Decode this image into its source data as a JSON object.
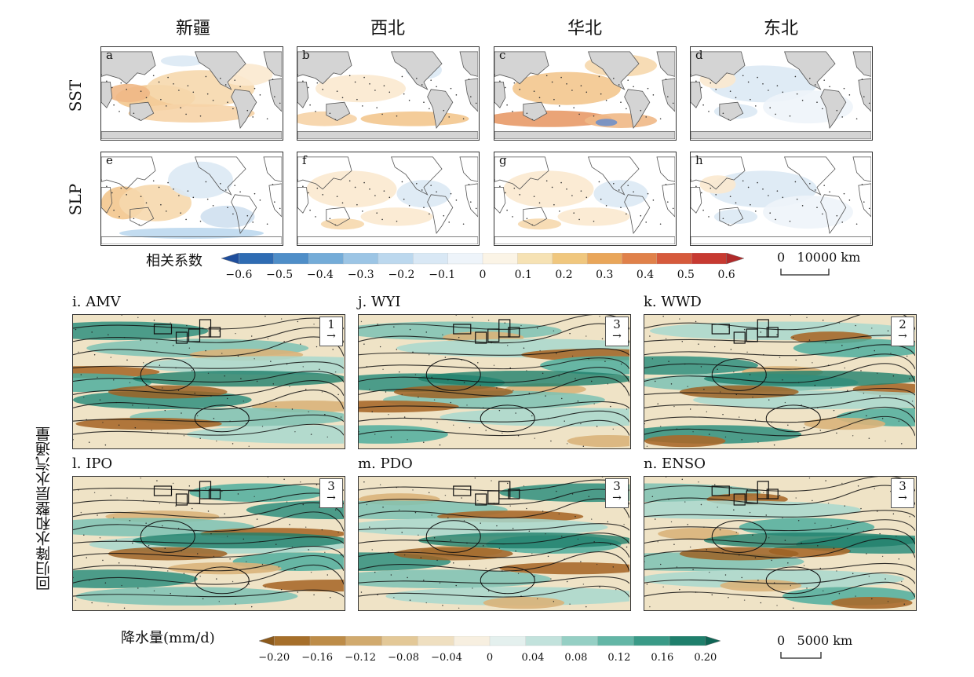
{
  "top": {
    "columns": [
      "新疆",
      "西北",
      "华北",
      "东北"
    ],
    "rows": [
      "SST",
      "SLP"
    ],
    "panels": [
      {
        "label": "a",
        "var": "SST",
        "mood": "warm"
      },
      {
        "label": "b",
        "var": "SST",
        "mood": "mixed"
      },
      {
        "label": "c",
        "var": "SST",
        "mood": "warm-south"
      },
      {
        "label": "d",
        "var": "SST",
        "mood": "cool"
      },
      {
        "label": "e",
        "var": "SLP",
        "mood": "warm-west"
      },
      {
        "label": "f",
        "var": "SLP",
        "mood": "light"
      },
      {
        "label": "g",
        "var": "SLP",
        "mood": "light"
      },
      {
        "label": "h",
        "var": "SLP",
        "mood": "cool"
      }
    ],
    "colorbar": {
      "title": "相关系数",
      "ticks": [
        "−0.6",
        "−0.5",
        "−0.4",
        "−0.3",
        "−0.2",
        "−0.1",
        "0",
        "0.1",
        "0.2",
        "0.3",
        "0.4",
        "0.5",
        "0.6"
      ],
      "colors": [
        "#1f4e9c",
        "#2f6cb3",
        "#4f8ec8",
        "#74acd8",
        "#9cc5e5",
        "#bcd8ee",
        "#d9e8f5",
        "#eef4fa",
        "#fbf4e6",
        "#f6e2b4",
        "#f0c77e",
        "#e9a65a",
        "#e0814a",
        "#d65a3c",
        "#c73a31",
        "#b02a2a"
      ],
      "scale": "0   10000 km"
    }
  },
  "bottom": {
    "vertical_label": "回归降水和整层水汽通量",
    "panels": [
      {
        "title": "i. AMV",
        "ref": "1"
      },
      {
        "title": "j. WYI",
        "ref": "3"
      },
      {
        "title": "k. WWD",
        "ref": "2"
      },
      {
        "title": "l. IPO",
        "ref": "3"
      },
      {
        "title": "m. PDO",
        "ref": "3"
      },
      {
        "title": "n. ENSO",
        "ref": "3"
      }
    ],
    "colorbar": {
      "title": "降水量(mm/d)",
      "ticks": [
        "−0.20",
        "−0.16",
        "−0.12",
        "−0.08",
        "−0.04",
        "0",
        "0.04",
        "0.08",
        "0.12",
        "0.16",
        "0.20"
      ],
      "colors": [
        "#8c5a1c",
        "#a66f2a",
        "#bd8c48",
        "#d1aa6e",
        "#e3c897",
        "#efdfc0",
        "#f7efe0",
        "#e4f0ee",
        "#c2e2dc",
        "#95cfc4",
        "#63b6a6",
        "#3a9a87",
        "#1f7f6c",
        "#0f6555"
      ],
      "scale": "0   5000 km"
    }
  }
}
